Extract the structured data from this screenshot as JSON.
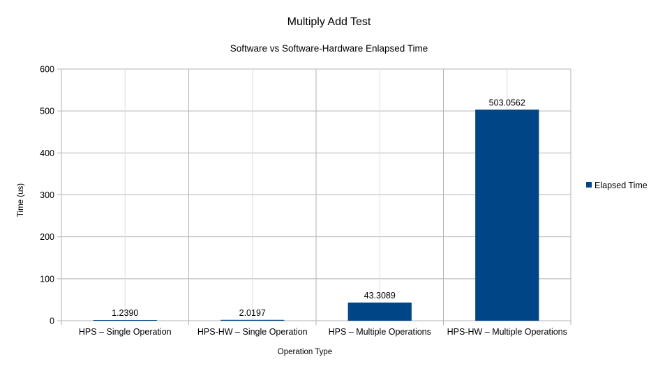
{
  "chart_data": {
    "type": "bar",
    "title": "Multiply Add Test",
    "subtitle": "Software vs Software-Hardware Enlapsed Time",
    "xlabel": "Operation Type",
    "ylabel": "Time (us)",
    "categories": [
      "HPS – Single Operation",
      "HPS-HW – Single Operation",
      "HPS – Multiple Operations",
      "HPS-HW – Multiple Operations"
    ],
    "series": [
      {
        "name": "Elapsed Time",
        "values": [
          1.239,
          2.0197,
          43.3089,
          503.0562
        ],
        "labels": [
          "1.2390",
          "2.0197",
          "43.3089",
          "503.0562"
        ],
        "color": "#004586"
      }
    ],
    "ylim": [
      0,
      600
    ],
    "yticks": [
      0,
      100,
      200,
      300,
      400,
      500,
      600
    ],
    "grid": true,
    "legend_position": "right"
  }
}
